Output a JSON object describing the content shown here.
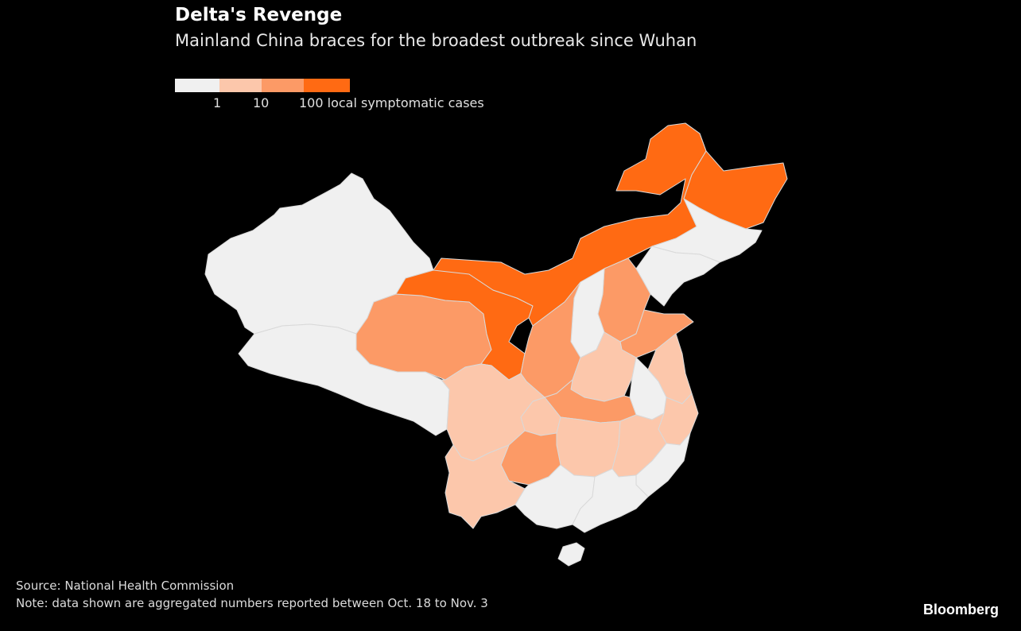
{
  "title": "Delta's Revenge",
  "subtitle": "Mainland China braces for the broadest outbreak since Wuhan",
  "legend": {
    "ticks": [
      "1",
      "10",
      "100 local symptomatic cases"
    ],
    "colors": [
      "#f0f0f0",
      "#fcc7ab",
      "#fc9a66",
      "#ff6a13"
    ]
  },
  "colors": {
    "background": "#000000",
    "border": "#d9d9d9"
  },
  "source": "Source: National Health Commission",
  "note": "Note: data shown are aggregated numbers reported between Oct. 18 to Nov. 3",
  "brand": "Bloomberg"
}
